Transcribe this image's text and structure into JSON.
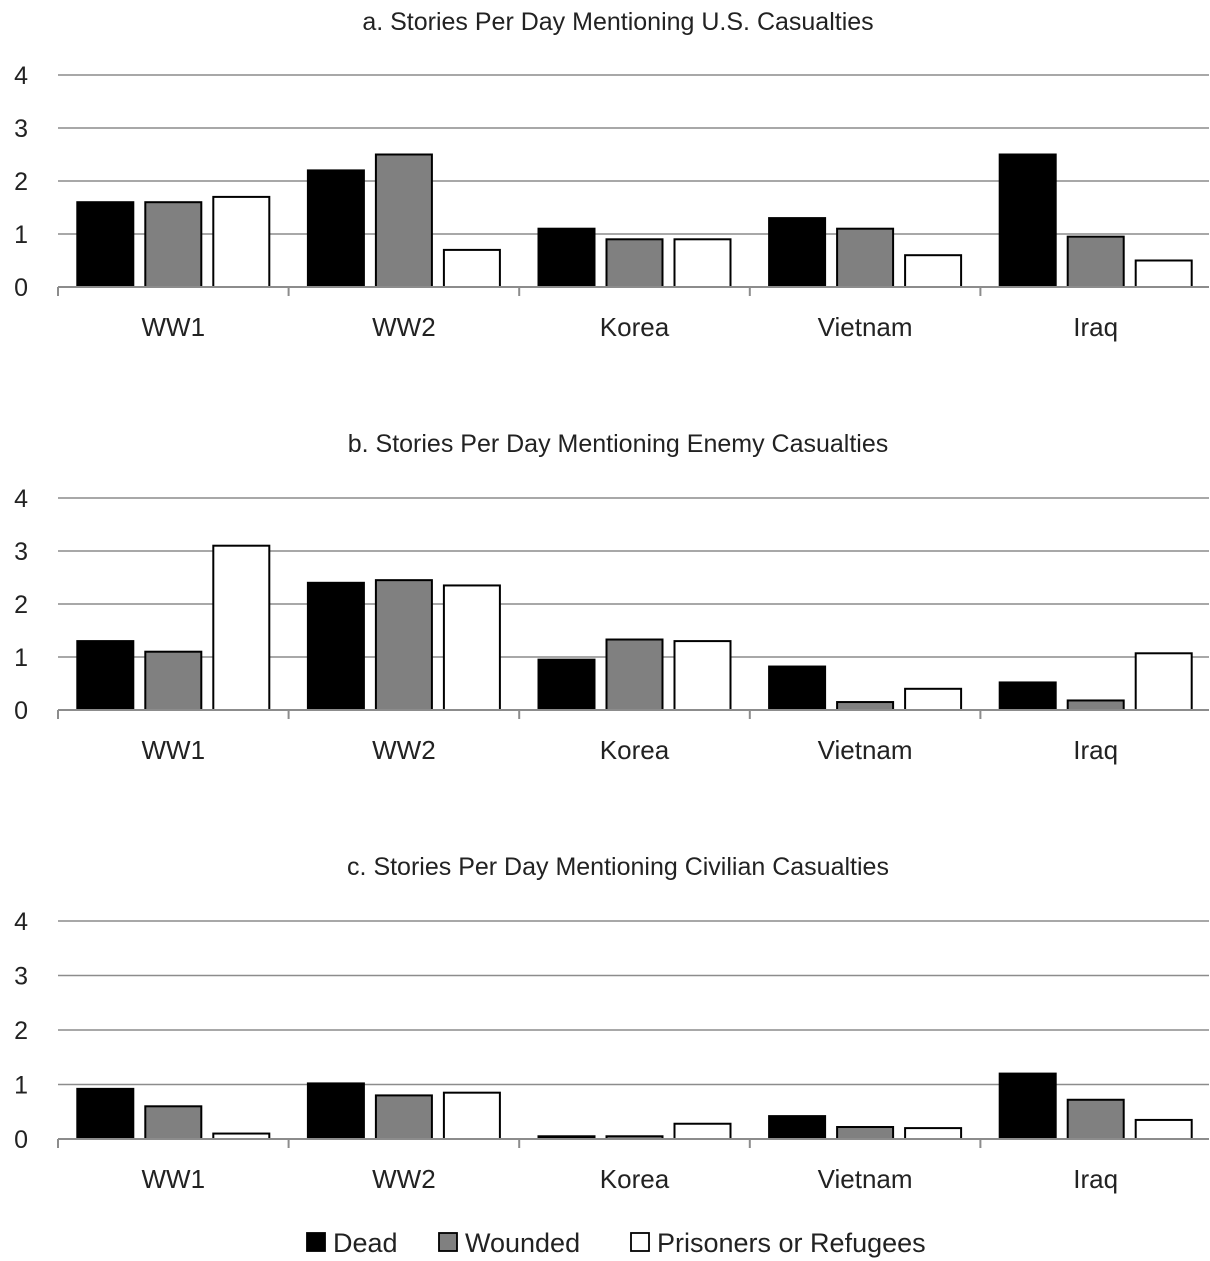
{
  "chart_data": [
    {
      "type": "bar",
      "title": "a. Stories Per Day Mentioning U.S. Casualties",
      "categories": [
        "WW1",
        "WW2",
        "Korea",
        "Vietnam",
        "Iraq"
      ],
      "ylim": [
        0,
        4
      ],
      "yticks": [
        "0",
        "1",
        "2",
        "3",
        "4"
      ],
      "grid": true,
      "series": [
        {
          "name": "Dead",
          "values": [
            1.6,
            2.2,
            1.1,
            1.3,
            2.5
          ]
        },
        {
          "name": "Wounded",
          "values": [
            1.6,
            2.5,
            0.9,
            1.1,
            0.95
          ]
        },
        {
          "name": "Prisoners or Refugees",
          "values": [
            1.7,
            0.7,
            0.9,
            0.6,
            0.5
          ]
        }
      ]
    },
    {
      "type": "bar",
      "title": "b. Stories Per Day Mentioning Enemy Casualties",
      "categories": [
        "WW1",
        "WW2",
        "Korea",
        "Vietnam",
        "Iraq"
      ],
      "ylim": [
        0,
        4
      ],
      "yticks": [
        "0",
        "1",
        "2",
        "3",
        "4"
      ],
      "grid": true,
      "series": [
        {
          "name": "Dead",
          "values": [
            1.3,
            2.4,
            0.95,
            0.82,
            0.52
          ]
        },
        {
          "name": "Wounded",
          "values": [
            1.1,
            2.45,
            1.33,
            0.15,
            0.18
          ]
        },
        {
          "name": "Prisoners or Refugees",
          "values": [
            3.1,
            2.35,
            1.3,
            0.4,
            1.07
          ]
        }
      ]
    },
    {
      "type": "bar",
      "title": "c. Stories Per Day Mentioning Civilian Casualties",
      "categories": [
        "WW1",
        "WW2",
        "Korea",
        "Vietnam",
        "Iraq"
      ],
      "ylim": [
        0,
        4
      ],
      "yticks": [
        "0",
        "1",
        "2",
        "3",
        "4"
      ],
      "grid": true,
      "series": [
        {
          "name": "Dead",
          "values": [
            0.92,
            1.02,
            0.05,
            0.42,
            1.2
          ]
        },
        {
          "name": "Wounded",
          "values": [
            0.6,
            0.8,
            0.05,
            0.22,
            0.72
          ]
        },
        {
          "name": "Prisoners or Refugees",
          "values": [
            0.1,
            0.85,
            0.28,
            0.2,
            0.35
          ]
        }
      ]
    }
  ],
  "legend": {
    "placement": "bottom",
    "items": [
      {
        "label": "Dead",
        "color": "#000000"
      },
      {
        "label": "Wounded",
        "color": "#808080"
      },
      {
        "label": "Prisoners or Refugees",
        "color": "#ffffff"
      }
    ]
  },
  "colors": {
    "dead": "#000000",
    "wounded": "#808080",
    "prisoners": "#ffffff",
    "grid": "#8c8c8c",
    "bar_stroke": "#000000"
  }
}
